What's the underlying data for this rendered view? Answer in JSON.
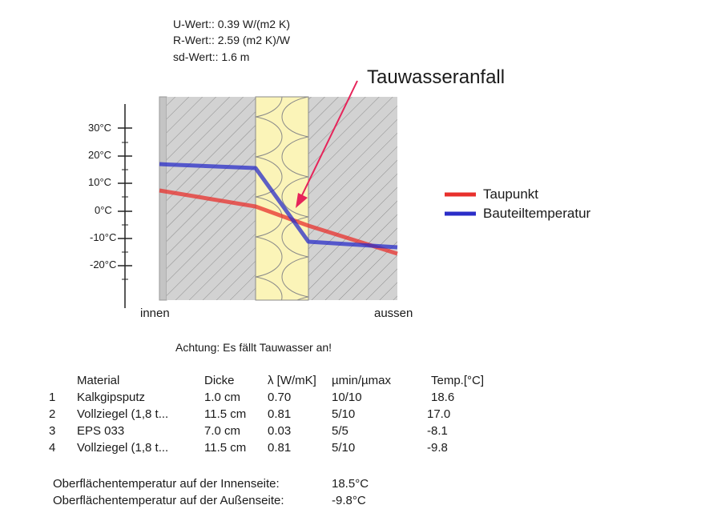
{
  "header": {
    "u_value": "U-Wert:: 0.39 W/(m2 K)",
    "r_value": "R-Wert:: 2.59 (m2 K)/W",
    "sd_value": "sd-Wert:: 1.6 m"
  },
  "annotation": "Tauwasseranfall",
  "axis": {
    "ticks": [
      "30°C",
      "20°C",
      "10°C",
      "0°C",
      "-10°C",
      "-20°C"
    ],
    "inner_label": "innen",
    "outer_label": "aussen"
  },
  "legend": [
    {
      "label": "Taupunkt",
      "color": "#e8302c"
    },
    {
      "label": "Bauteiltemperatur",
      "color": "#2a2dc8"
    }
  ],
  "warning": "Achtung: Es fällt Tauwasser an!",
  "table": {
    "headers": [
      "Material",
      "Dicke",
      "λ [W/mK]",
      "µmin/µmax",
      "Temp.[°C]"
    ],
    "rows": [
      {
        "nr": "1",
        "material": "Kalkgipsputz",
        "dicke": "1.0 cm",
        "lambda": "0.70",
        "mu": "10/10",
        "temp": "18.6"
      },
      {
        "nr": "2",
        "material": "Vollziegel (1,8 t...",
        "dicke": "11.5 cm",
        "lambda": "0.81",
        "mu": "5/10",
        "temp": "17.0"
      },
      {
        "nr": "3",
        "material": "EPS 033",
        "dicke": "7.0 cm",
        "lambda": "0.03",
        "mu": "5/5",
        "temp": "-8.1"
      },
      {
        "nr": "4",
        "material": "Vollziegel (1,8 t...",
        "dicke": "11.5 cm",
        "lambda": "0.81",
        "mu": "5/10",
        "temp": "-9.8"
      }
    ]
  },
  "summary": {
    "inside_label": "Oberflächentemperatur auf der Innenseite:",
    "inside_value": "18.5°C",
    "outside_label": "Oberflächentemperatur auf der Außenseite:",
    "outside_value": "-9.8°C"
  }
}
